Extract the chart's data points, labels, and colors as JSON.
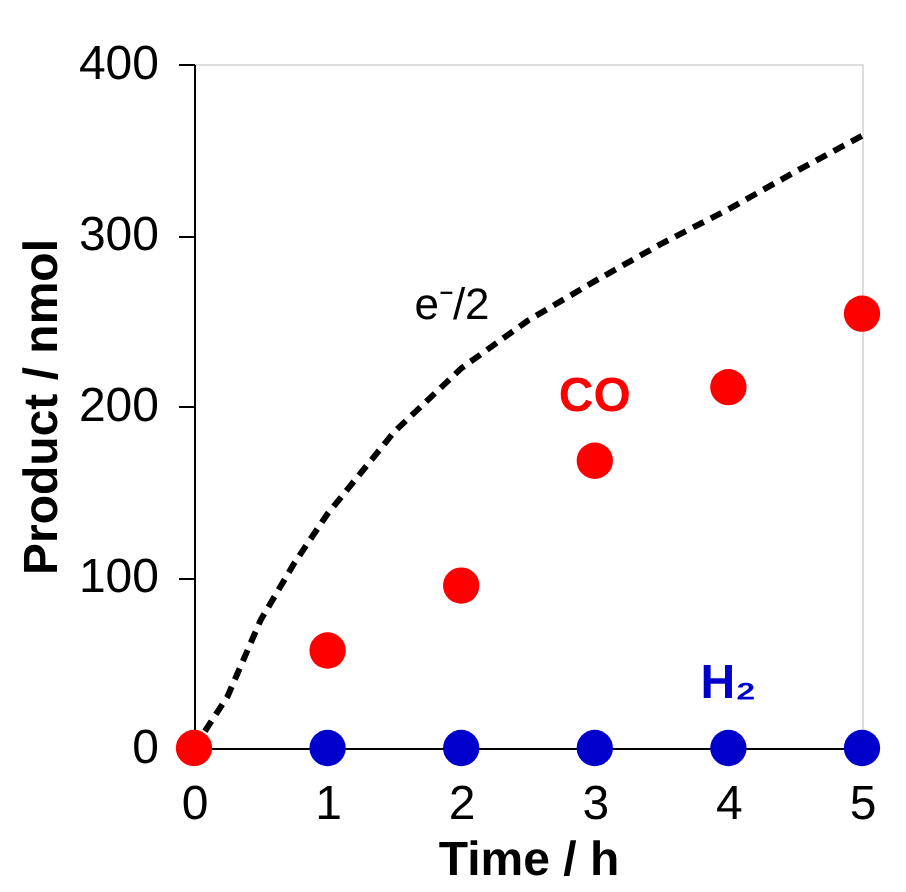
{
  "chart_data": {
    "type": "scatter",
    "xlabel": "Time / h",
    "ylabel": "Product / nmol",
    "xlim": [
      0,
      5
    ],
    "xticks": [
      0,
      1,
      2,
      3,
      4,
      5
    ],
    "ylim": [
      0,
      400
    ],
    "yticks": [
      0,
      100,
      200,
      300,
      400
    ],
    "grid": false,
    "legend": false,
    "series": [
      {
        "name": "e⁻/2",
        "type": "line",
        "color": "#000000",
        "line_style": "dashed",
        "marker": "none",
        "x": [
          0,
          0.25,
          0.5,
          0.75,
          1,
          1.5,
          2,
          2.5,
          3,
          3.5,
          4,
          4.5,
          5
        ],
        "values": [
          0,
          30,
          75,
          108,
          137,
          185,
          222,
          250,
          273,
          295,
          315,
          337,
          358
        ]
      },
      {
        "name": "H₂",
        "type": "scatter",
        "color": "#0000cc",
        "marker": "circle",
        "x": [
          1,
          2,
          3,
          4,
          5
        ],
        "values": [
          0,
          0,
          0,
          0,
          0
        ]
      },
      {
        "name": "CO",
        "type": "scatter",
        "color": "#ff0000",
        "marker": "circle",
        "x": [
          0,
          1,
          2,
          3,
          4,
          5
        ],
        "values": [
          0,
          57,
          95,
          168,
          211,
          254
        ]
      }
    ]
  }
}
